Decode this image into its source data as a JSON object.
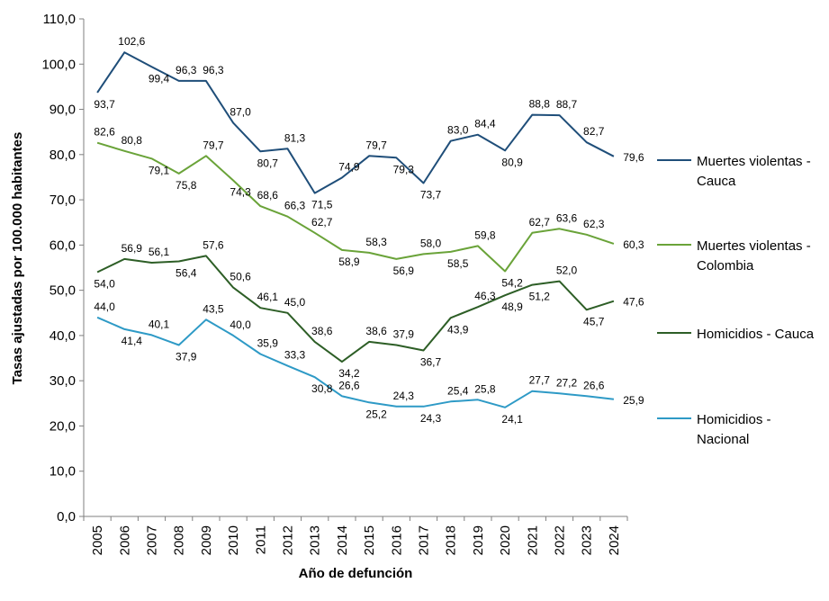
{
  "chart_data": {
    "type": "line",
    "xlabel": "Año de defunción",
    "ylabel": "Tasas ajustadas por 100.000 habitantes",
    "ylim": [
      0,
      110
    ],
    "yticks": [
      "0,0",
      "10,0",
      "20,0",
      "30,0",
      "40,0",
      "50,0",
      "60,0",
      "70,0",
      "80,0",
      "90,0",
      "100,0",
      "110,0"
    ],
    "categories": [
      "2005",
      "2006",
      "2007",
      "2008",
      "2009",
      "2010",
      "2011",
      "2012",
      "2013",
      "2014",
      "2015",
      "2016",
      "2017",
      "2018",
      "2019",
      "2020",
      "2021",
      "2022",
      "2023",
      "2024"
    ],
    "grid": false,
    "legend_position": "right",
    "series": [
      {
        "name": "Muertes violentas - Cauca",
        "legend_lines": [
          "Muertes violentas -",
          "Cauca"
        ],
        "color": "#1f4e79",
        "values": [
          93.7,
          102.6,
          99.4,
          96.3,
          96.3,
          87.0,
          80.7,
          81.3,
          71.5,
          74.9,
          79.7,
          79.3,
          73.7,
          83.0,
          84.4,
          80.9,
          88.8,
          88.7,
          82.7,
          79.6
        ],
        "labels": [
          "93,7",
          "102,6",
          "99,4",
          "96,3",
          "96,3",
          "87,0",
          "80,7",
          "81,3",
          "71,5",
          "74,9",
          "79,7",
          "79,3",
          "73,7",
          "83,0",
          "84,4",
          "80,9",
          "88,8",
          "88,7",
          "82,7",
          "79,6"
        ]
      },
      {
        "name": "Muertes violentas - Colombia",
        "legend_lines": [
          "Muertes violentas -",
          "Colombia"
        ],
        "color": "#6aa339",
        "values": [
          82.6,
          80.8,
          79.1,
          75.8,
          79.7,
          74.3,
          68.6,
          66.3,
          62.7,
          58.9,
          58.3,
          56.9,
          58.0,
          58.5,
          59.8,
          54.2,
          62.7,
          63.6,
          62.3,
          60.3
        ],
        "labels": [
          "82,6",
          "80,8",
          "79,1",
          "75,8",
          "79,7",
          "74,3",
          "68,6",
          "66,3",
          "62,7",
          "58,9",
          "58,3",
          "56,9",
          "58,0",
          "58,5",
          "59,8",
          "54,2",
          "62,7",
          "63,6",
          "62,3",
          "60,3"
        ]
      },
      {
        "name": "Homicidios - Cauca",
        "legend_lines": [
          "Homicidios - Cauca"
        ],
        "color": "#2d5e26",
        "values": [
          54.0,
          56.9,
          56.1,
          56.4,
          57.6,
          50.6,
          46.1,
          45.0,
          38.6,
          34.2,
          38.6,
          37.9,
          36.7,
          43.9,
          46.3,
          48.9,
          51.2,
          52.0,
          45.7,
          47.6
        ],
        "labels": [
          "54,0",
          "56,9",
          "56,1",
          "56,4",
          "57,6",
          "50,6",
          "46,1",
          "45,0",
          "38,6",
          "34,2",
          "38,6",
          "37,9",
          "36,7",
          "43,9",
          "46,3",
          "48,9",
          "51,2",
          "52,0",
          "45,7",
          "47,6"
        ]
      },
      {
        "name": "Homicidios - Nacional",
        "legend_lines": [
          "Homicidios -",
          "Nacional"
        ],
        "color": "#2e9ac6",
        "values": [
          44.0,
          41.4,
          40.1,
          37.9,
          43.5,
          40.0,
          35.9,
          33.3,
          30.8,
          26.6,
          25.2,
          24.3,
          24.3,
          25.4,
          25.8,
          24.1,
          27.7,
          27.2,
          26.6,
          25.9
        ],
        "labels": [
          "44,0",
          "41,4",
          "40,1",
          "37,9",
          "43,5",
          "40,0",
          "35,9",
          "33,3",
          "30,8",
          "26,6",
          "25,2",
          "24,3",
          "24,3",
          "25,4",
          "25,8",
          "24,1",
          "27,7",
          "27,2",
          "26,6",
          "25,9"
        ]
      }
    ]
  }
}
